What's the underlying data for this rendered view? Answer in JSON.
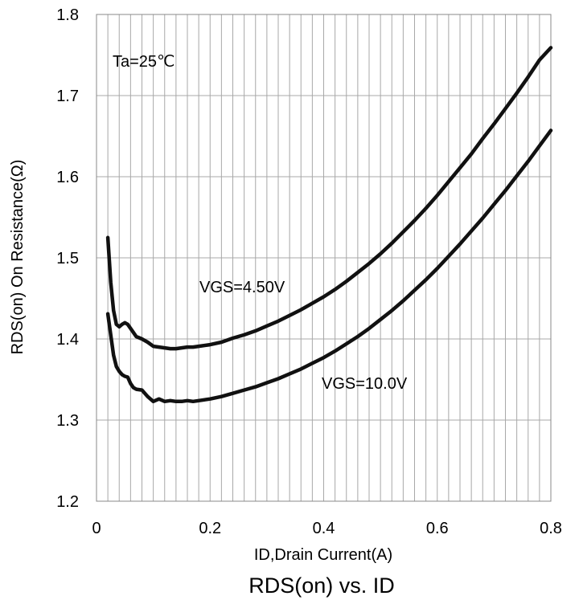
{
  "chart_data": {
    "type": "line",
    "title": "RDS(on) vs. ID",
    "xlabel": "ID,Drain Current(A)",
    "ylabel": "RDS(on) On Resistance(Ω)",
    "xlim": [
      0,
      0.8
    ],
    "ylim": [
      1.2,
      1.8
    ],
    "x_ticks": [
      "0",
      "0.2",
      "0.4",
      "0.6",
      "0.8"
    ],
    "y_ticks": [
      "1.2",
      "1.3",
      "1.4",
      "1.5",
      "1.6",
      "1.7",
      "1.8"
    ],
    "grid": true,
    "annotations": [
      "Ta=25℃"
    ],
    "series": [
      {
        "name": "VGS=4.50V",
        "x": [
          0.02,
          0.025,
          0.03,
          0.035,
          0.04,
          0.045,
          0.05,
          0.055,
          0.06,
          0.065,
          0.07,
          0.08,
          0.09,
          0.1,
          0.11,
          0.12,
          0.13,
          0.14,
          0.15,
          0.16,
          0.17,
          0.18,
          0.2,
          0.22,
          0.24,
          0.26,
          0.28,
          0.3,
          0.32,
          0.34,
          0.36,
          0.38,
          0.4,
          0.42,
          0.44,
          0.46,
          0.48,
          0.5,
          0.52,
          0.54,
          0.56,
          0.58,
          0.6,
          0.62,
          0.64,
          0.66,
          0.68,
          0.7,
          0.72,
          0.74,
          0.76,
          0.78,
          0.8
        ],
        "y": [
          1.525,
          1.47,
          1.435,
          1.418,
          1.415,
          1.418,
          1.42,
          1.418,
          1.413,
          1.408,
          1.403,
          1.4,
          1.396,
          1.391,
          1.39,
          1.389,
          1.388,
          1.388,
          1.389,
          1.39,
          1.39,
          1.391,
          1.393,
          1.396,
          1.401,
          1.405,
          1.41,
          1.416,
          1.422,
          1.429,
          1.436,
          1.444,
          1.452,
          1.461,
          1.471,
          1.482,
          1.493,
          1.505,
          1.518,
          1.532,
          1.546,
          1.561,
          1.577,
          1.594,
          1.611,
          1.628,
          1.647,
          1.665,
          1.684,
          1.703,
          1.723,
          1.744,
          1.759
        ]
      },
      {
        "name": "VGS=10.0V",
        "x": [
          0.02,
          0.025,
          0.03,
          0.035,
          0.04,
          0.045,
          0.05,
          0.055,
          0.06,
          0.065,
          0.07,
          0.08,
          0.09,
          0.1,
          0.11,
          0.12,
          0.13,
          0.14,
          0.15,
          0.16,
          0.17,
          0.18,
          0.2,
          0.22,
          0.24,
          0.26,
          0.28,
          0.3,
          0.32,
          0.34,
          0.36,
          0.38,
          0.4,
          0.42,
          0.44,
          0.46,
          0.48,
          0.5,
          0.52,
          0.54,
          0.56,
          0.58,
          0.6,
          0.62,
          0.64,
          0.66,
          0.68,
          0.7,
          0.72,
          0.74,
          0.76,
          0.78,
          0.8
        ],
        "y": [
          1.431,
          1.405,
          1.38,
          1.366,
          1.36,
          1.356,
          1.354,
          1.353,
          1.345,
          1.34,
          1.338,
          1.337,
          1.329,
          1.323,
          1.326,
          1.323,
          1.324,
          1.323,
          1.323,
          1.324,
          1.323,
          1.324,
          1.326,
          1.329,
          1.333,
          1.337,
          1.341,
          1.346,
          1.351,
          1.357,
          1.363,
          1.37,
          1.377,
          1.385,
          1.394,
          1.403,
          1.413,
          1.424,
          1.435,
          1.447,
          1.46,
          1.473,
          1.487,
          1.502,
          1.517,
          1.533,
          1.549,
          1.566,
          1.583,
          1.601,
          1.619,
          1.638,
          1.657
        ]
      }
    ]
  }
}
